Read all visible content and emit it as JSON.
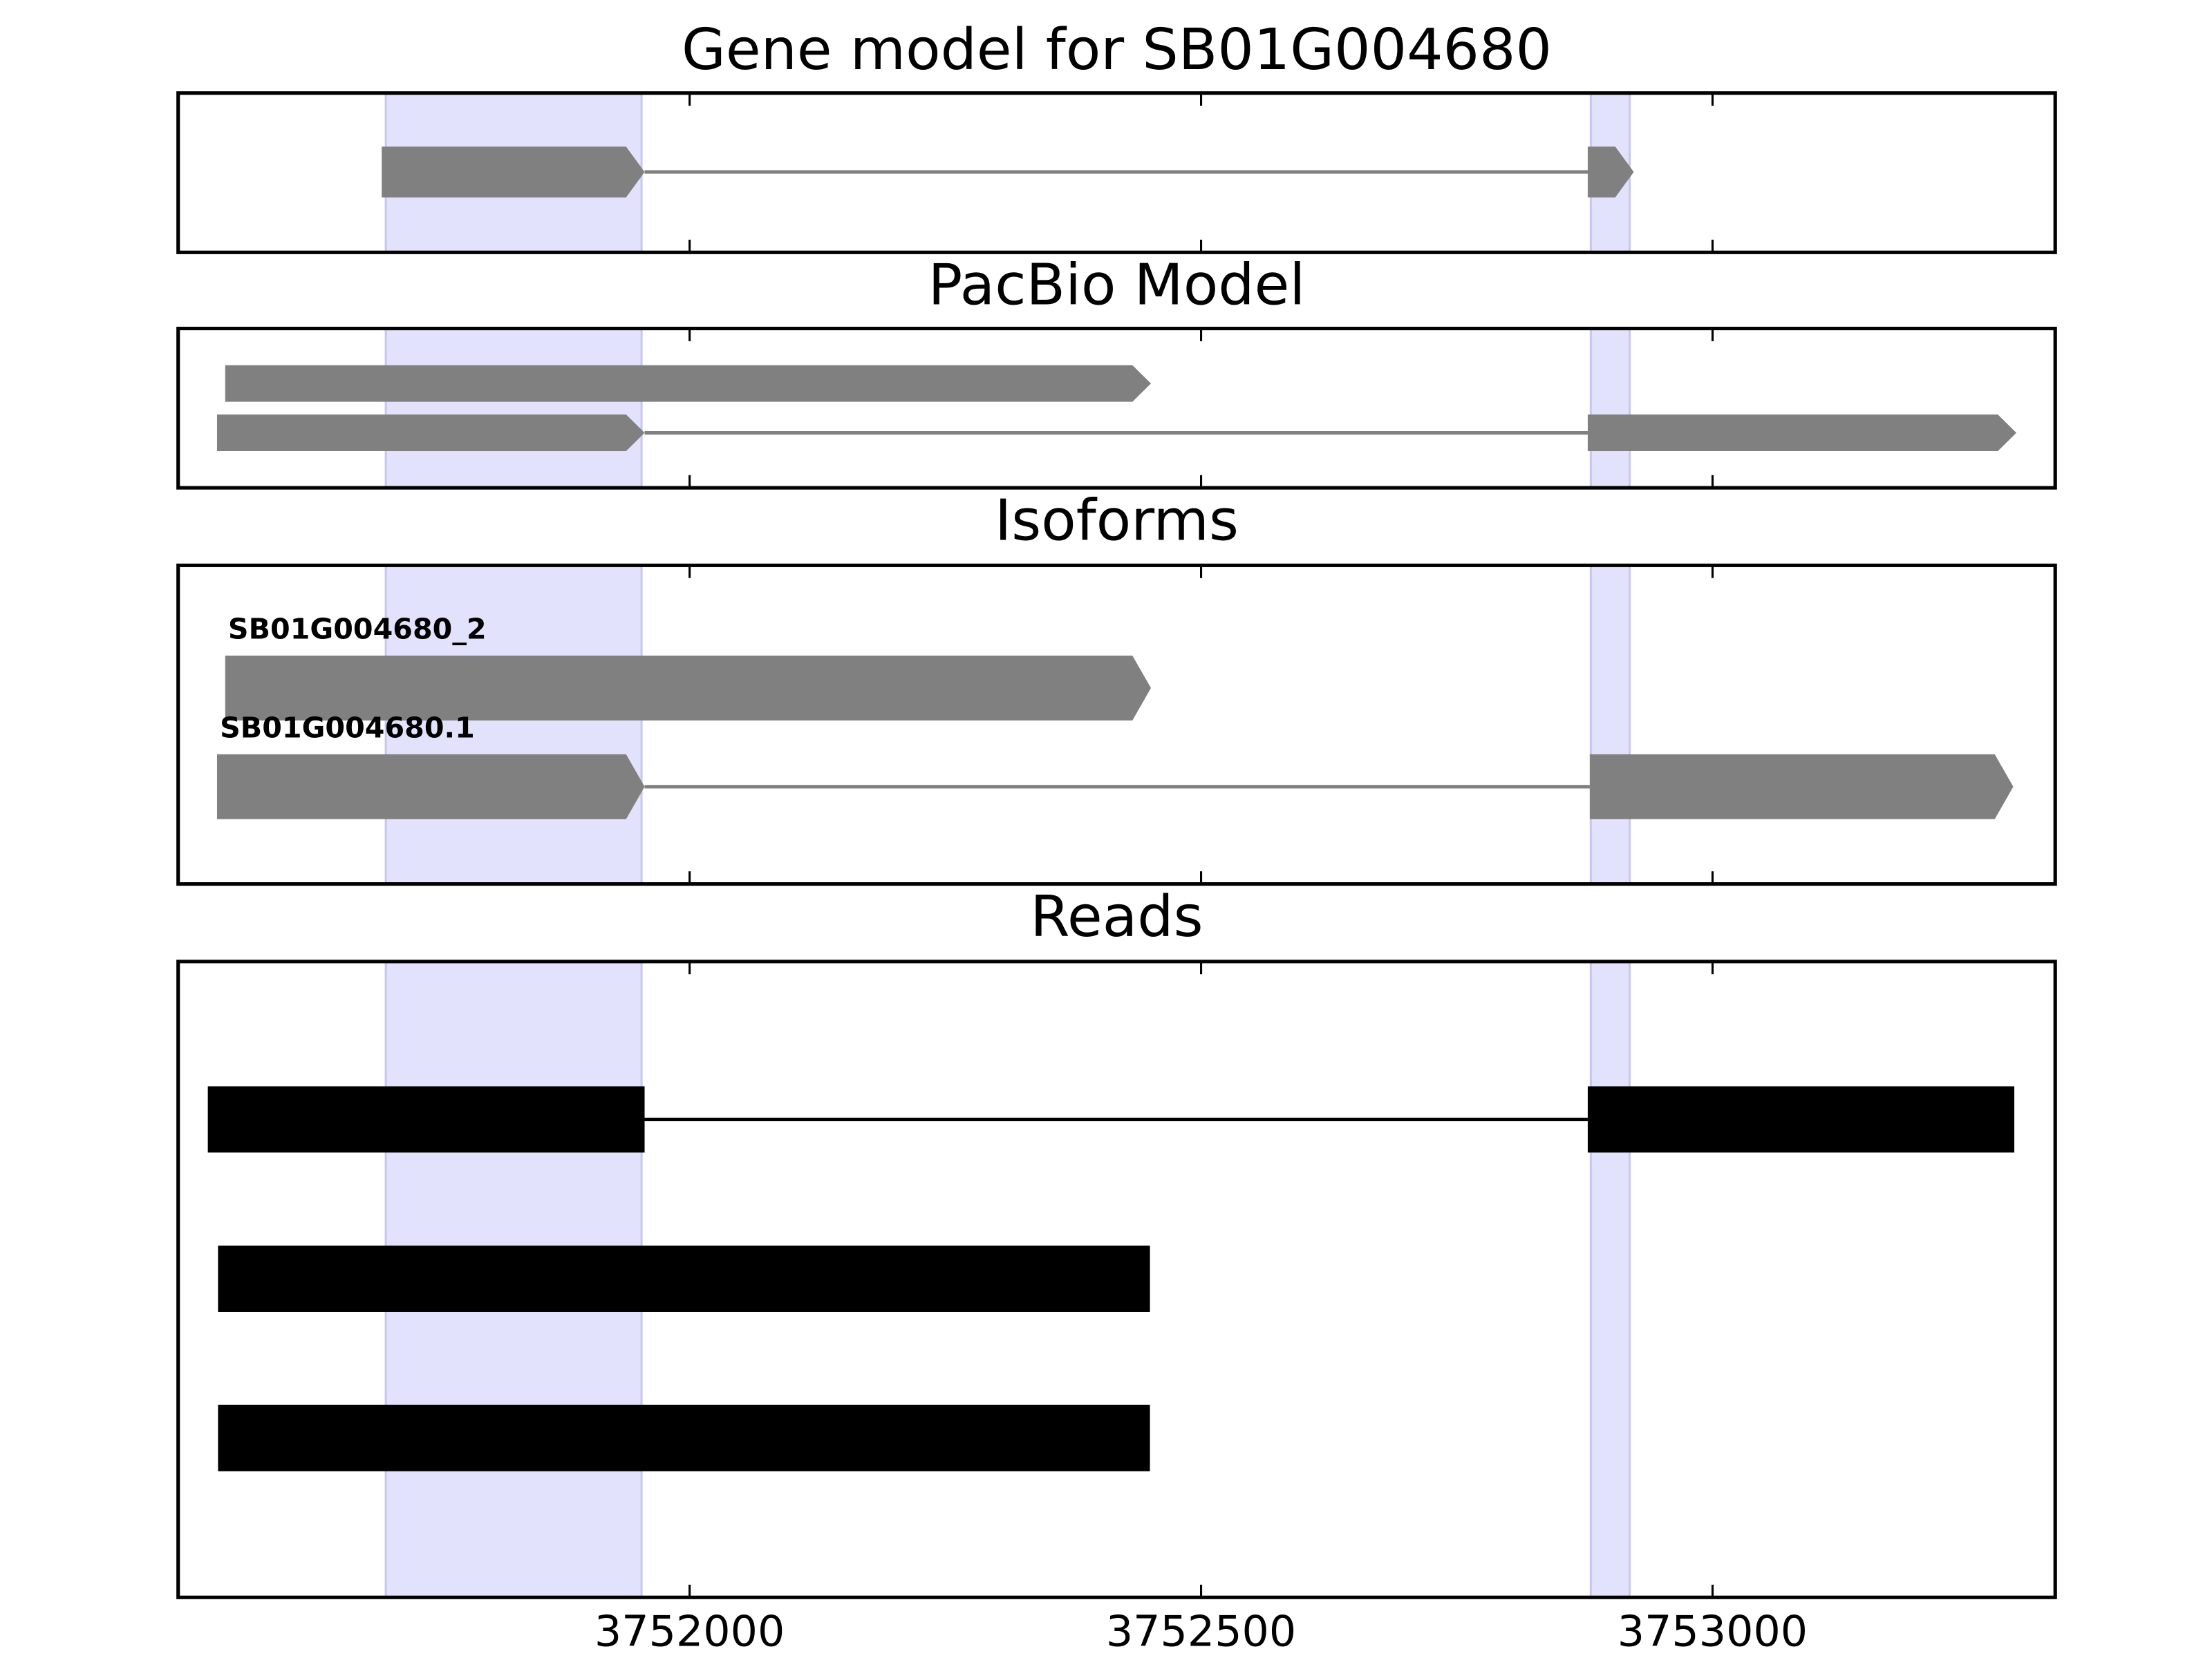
{
  "chart_data": [
    {
      "type": "gene",
      "title": "Gene model for SB01G004680",
      "color": "#808080",
      "highlight_color": "#e2e2fc",
      "xlim": [
        3751500,
        3753335
      ],
      "xticks": [
        3752000,
        3752500,
        3753000
      ],
      "highlights": [
        [
          3751703,
          3751953
        ],
        [
          3752881,
          3752919
        ]
      ],
      "tracks": [
        {
          "exons": [
            [
              3751699,
              3751956
            ],
            [
              3752878,
              3752923
            ]
          ]
        }
      ]
    },
    {
      "type": "gene",
      "title": "PacBio Model",
      "color": "#808080",
      "highlight_color": "#e2e2fc",
      "xlim": [
        3751500,
        3753335
      ],
      "xticks": [
        3752000,
        3752500,
        3753000
      ],
      "highlights": [
        [
          3751703,
          3751953
        ],
        [
          3752881,
          3752919
        ]
      ],
      "tracks": [
        {
          "exons": [
            [
              3751546,
              3752451
            ]
          ]
        },
        {
          "exons": [
            [
              3751538,
              3751956
            ],
            [
              3752878,
              3753297
            ]
          ]
        }
      ]
    },
    {
      "type": "gene",
      "title": "Isoforms",
      "color": "#808080",
      "highlight_color": "#e2e2fc",
      "xlim": [
        3751500,
        3753335
      ],
      "xticks": [
        3752000,
        3752500,
        3753000
      ],
      "highlights": [
        [
          3751703,
          3751953
        ],
        [
          3752881,
          3752919
        ]
      ],
      "tracks": [
        {
          "name": "SB01G004680_2",
          "exons": [
            [
              3751546,
              3752451
            ]
          ]
        },
        {
          "name": "SB01G004680.1",
          "exons": [
            [
              3751538,
              3751956
            ],
            [
              3752880,
              3753294
            ]
          ]
        }
      ]
    },
    {
      "type": "reads",
      "title": "Reads",
      "color": "#000000",
      "highlight_color": "#e2e2fc",
      "xlim": [
        3751500,
        3753335
      ],
      "xticks": [
        3752000,
        3752500,
        3753000
      ],
      "highlights": [
        [
          3751703,
          3751953
        ],
        [
          3752881,
          3752919
        ]
      ],
      "tracks": [
        {
          "exons": [
            [
              3751529,
              3751956
            ],
            [
              3752878,
              3753295
            ]
          ]
        },
        {
          "exons": [
            [
              3751539,
              3752450
            ]
          ]
        },
        {
          "exons": [
            [
              3751539,
              3752450
            ]
          ]
        }
      ]
    }
  ]
}
